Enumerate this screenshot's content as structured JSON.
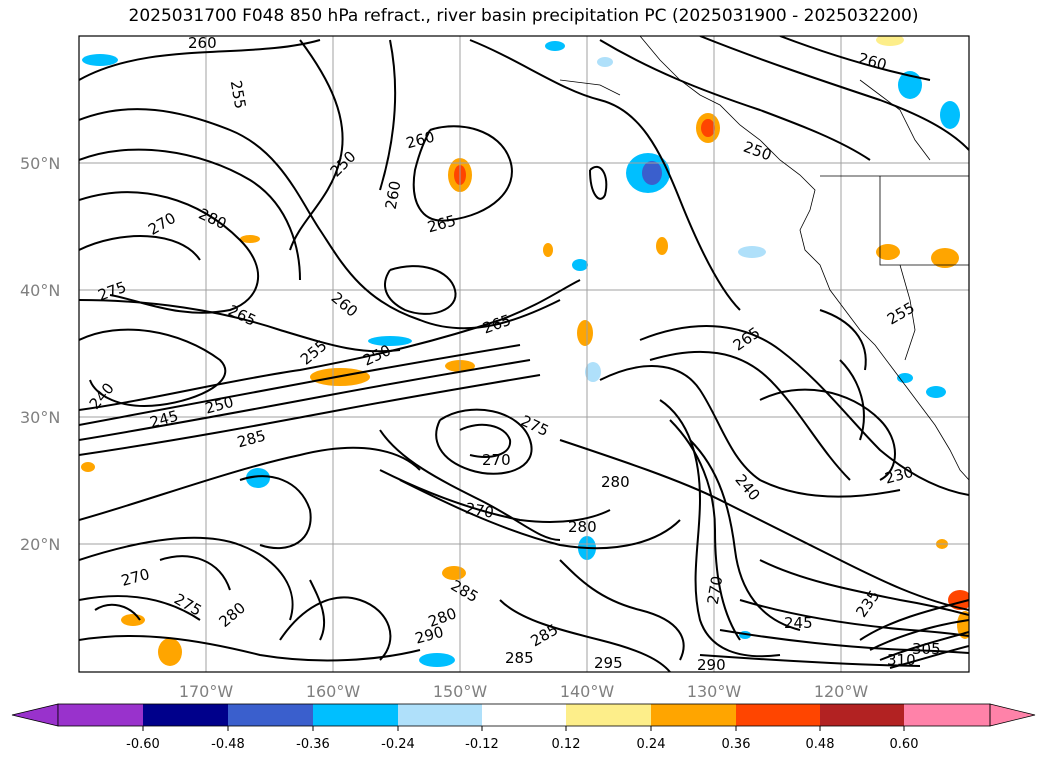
{
  "title": "2025031700 F048 850 hPa refract., river basin precipitation PC (2025031900 - 2025032200)",
  "map": {
    "lat_ticks": [
      "50°N",
      "40°N",
      "30°N",
      "20°N"
    ],
    "lon_ticks": [
      "170°W",
      "160°W",
      "150°W",
      "140°W",
      "130°W",
      "120°W"
    ],
    "gridlines": true
  },
  "contour_labels": [
    "260",
    "255",
    "260",
    "250",
    "260",
    "265",
    "260",
    "280",
    "270",
    "265",
    "260",
    "265",
    "255",
    "250",
    "240",
    "245",
    "250",
    "285",
    "275",
    "275",
    "270",
    "280",
    "280",
    "270",
    "285",
    "280",
    "275",
    "270",
    "280",
    "285",
    "290",
    "295",
    "290",
    "285",
    "240",
    "270",
    "245",
    "235",
    "230",
    "265",
    "255",
    "250",
    "305",
    "310"
  ],
  "colorbar": {
    "tick_labels": [
      "-0.60",
      "-0.48",
      "-0.36",
      "-0.24",
      "-0.12",
      "0.12",
      "0.24",
      "0.36",
      "0.48",
      "0.60"
    ],
    "colors": [
      "#9932cc",
      "#00008b",
      "#3a5fcd",
      "#00bfff",
      "#afe0fa",
      "#ffffff",
      "#fdee8a",
      "#ffa500",
      "#ff4500",
      "#b22222",
      "#ff82a9"
    ],
    "extend": "both"
  }
}
